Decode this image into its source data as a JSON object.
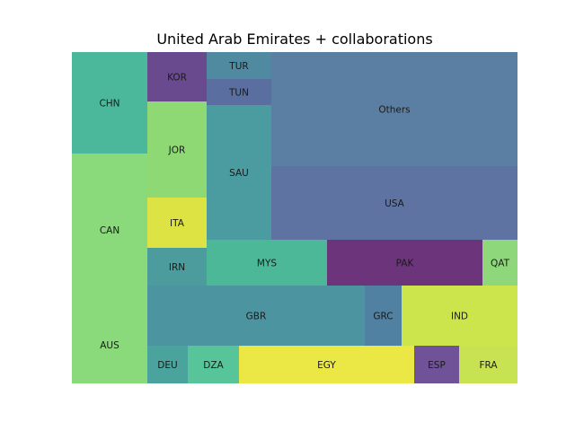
{
  "chart_data": {
    "type": "treemap",
    "title": "United Arab Emirates + collaborations",
    "cells": [
      {
        "label": "CHN",
        "color": "#4bb89b"
      },
      {
        "label": "CAN",
        "color": "#8ad97a"
      },
      {
        "label": "AUS",
        "color": "#8ad97a"
      },
      {
        "label": "KOR",
        "color": "#6a4a8e"
      },
      {
        "label": "JOR",
        "color": "#8ed974"
      },
      {
        "label": "ITA",
        "color": "#dde343"
      },
      {
        "label": "IRN",
        "color": "#4c9c9e"
      },
      {
        "label": "DEU",
        "color": "#4aa39c"
      },
      {
        "label": "DZA",
        "color": "#58c49a"
      },
      {
        "label": "TUR",
        "color": "#4f8aa1"
      },
      {
        "label": "TUN",
        "color": "#5a6fa0"
      },
      {
        "label": "SAU",
        "color": "#4a9ca0"
      },
      {
        "label": "Others",
        "color": "#5b7fa3"
      },
      {
        "label": "USA",
        "color": "#5e73a2"
      },
      {
        "label": "MYS",
        "color": "#4db898"
      },
      {
        "label": "PAK",
        "color": "#6b347b"
      },
      {
        "label": "QAT",
        "color": "#8ed77a"
      },
      {
        "label": "GBR",
        "color": "#4c95a0"
      },
      {
        "label": "GRC",
        "color": "#5080a2"
      },
      {
        "label": "IND",
        "color": "#cde54c"
      },
      {
        "label": "EGY",
        "color": "#ebe845"
      },
      {
        "label": "ESP",
        "color": "#6f5297"
      },
      {
        "label": "FRA",
        "color": "#c7e352"
      }
    ]
  }
}
